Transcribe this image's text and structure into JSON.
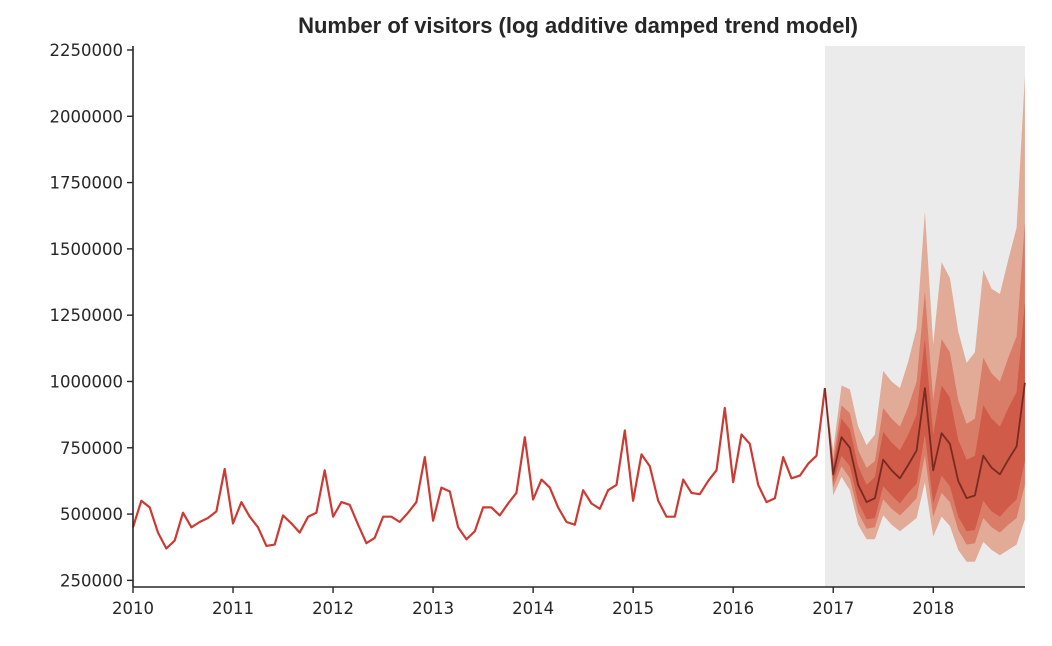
{
  "chart_data": {
    "type": "line",
    "title": "Number of visitors (log additive damped trend model)",
    "xlabel": "",
    "ylabel": "",
    "xlim": [
      2010.0,
      2018.917
    ],
    "ylim": [
      225000,
      2265000
    ],
    "x_ticks": [
      "2010",
      "2011",
      "2012",
      "2013",
      "2014",
      "2015",
      "2016",
      "2017",
      "2018"
    ],
    "y_ticks": [
      "250000",
      "500000",
      "750000",
      "1000000",
      "1250000",
      "1500000",
      "1750000",
      "2000000",
      "2250000"
    ],
    "x_start": 2010.0,
    "x_step_years": 0.08333,
    "grid": false,
    "legend": "none",
    "colors": {
      "observed": "#cc3b33",
      "forecast_line": "#7a2a22",
      "band_outer": "#e2ab98",
      "band_middle": "#da7d68",
      "band_inner": "#cf5b48",
      "forecast_region": "#ebebeb",
      "axis": "#262626"
    },
    "forecast_region": [
      2016.917,
      2018.917
    ],
    "series": [
      {
        "role": "observed",
        "values": [
          450000,
          550000,
          525000,
          430000,
          370000,
          400000,
          505000,
          450000,
          470000,
          485000,
          510000,
          670000,
          465000,
          545000,
          490000,
          450000,
          380000,
          385000,
          495000,
          465000,
          430000,
          490000,
          505000,
          665000,
          490000,
          545000,
          535000,
          460000,
          390000,
          410000,
          490000,
          490000,
          470000,
          505000,
          545000,
          715000,
          475000,
          600000,
          585000,
          450000,
          405000,
          435000,
          525000,
          525000,
          495000,
          540000,
          580000,
          790000,
          555000,
          630000,
          600000,
          525000,
          470000,
          460000,
          590000,
          540000,
          520000,
          590000,
          610000,
          815000,
          550000,
          725000,
          680000,
          550000,
          490000,
          490000,
          630000,
          580000,
          575000,
          625000,
          665000,
          900000,
          620000,
          800000,
          765000,
          610000,
          545000,
          560000,
          715000,
          635000,
          645000,
          690000,
          720000,
          975000
        ]
      },
      {
        "role": "forecast",
        "values": [
          975000,
          650000,
          790000,
          750000,
          610000,
          545000,
          560000,
          705000,
          665000,
          635000,
          685000,
          740000,
          975000,
          665000,
          805000,
          765000,
          625000,
          560000,
          570000,
          720000,
          675000,
          650000,
          705000,
          755000,
          995000
        ],
        "bands": {
          "outer_upper": [
            975000,
            740000,
            985000,
            970000,
            830000,
            760000,
            800000,
            1040000,
            1000000,
            975000,
            1075000,
            1200000,
            1640000,
            1140000,
            1450000,
            1390000,
            1190000,
            1070000,
            1110000,
            1420000,
            1350000,
            1330000,
            1460000,
            1580000,
            2150000
          ],
          "middle_upper": [
            975000,
            705000,
            910000,
            880000,
            740000,
            675000,
            700000,
            900000,
            860000,
            830000,
            905000,
            1000000,
            1340000,
            930000,
            1160000,
            1110000,
            930000,
            840000,
            860000,
            1090000,
            1030000,
            1000000,
            1090000,
            1170000,
            1600000
          ],
          "inner_upper": [
            975000,
            680000,
            860000,
            820000,
            680000,
            610000,
            640000,
            810000,
            770000,
            740000,
            800000,
            875000,
            1160000,
            800000,
            985000,
            940000,
            780000,
            705000,
            720000,
            910000,
            860000,
            830000,
            900000,
            960000,
            1300000
          ],
          "inner_lower": [
            975000,
            620000,
            720000,
            680000,
            545000,
            480000,
            485000,
            605000,
            570000,
            540000,
            580000,
            615000,
            800000,
            540000,
            645000,
            605000,
            490000,
            435000,
            440000,
            550000,
            510000,
            490000,
            525000,
            555000,
            700000
          ],
          "middle_lower": [
            975000,
            600000,
            680000,
            635000,
            505000,
            445000,
            450000,
            555000,
            520000,
            495000,
            525000,
            560000,
            720000,
            490000,
            580000,
            545000,
            440000,
            385000,
            390000,
            485000,
            450000,
            430000,
            460000,
            485000,
            610000
          ],
          "outer_lower": [
            975000,
            570000,
            640000,
            590000,
            460000,
            405000,
            405000,
            495000,
            460000,
            435000,
            460000,
            485000,
            620000,
            415000,
            490000,
            455000,
            365000,
            320000,
            320000,
            395000,
            365000,
            345000,
            365000,
            385000,
            480000
          ]
        }
      }
    ]
  }
}
